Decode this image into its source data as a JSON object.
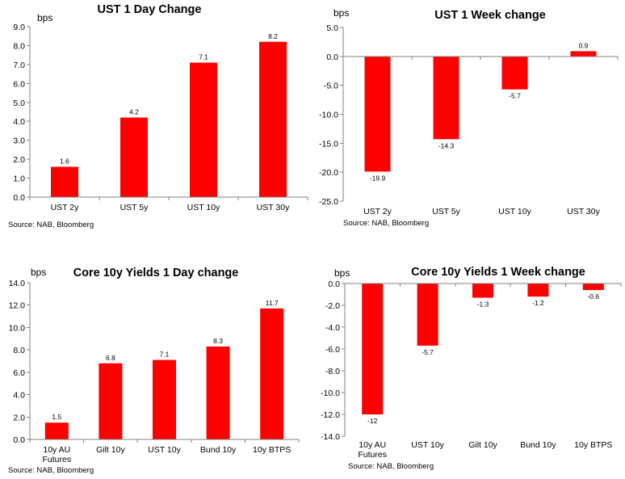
{
  "colors": {
    "bar": "#ff0000",
    "axis": "#808080",
    "text": "#000000",
    "background": "#ffffff"
  },
  "chart_data": [
    {
      "type": "bar",
      "title": "UST 1 Day Change",
      "ylabel": "bps",
      "source": "Source: NAB, Bloomberg",
      "categories": [
        "UST 2y",
        "UST 5y",
        "UST 10y",
        "UST 30y"
      ],
      "values": [
        1.6,
        4.2,
        7.1,
        8.2
      ],
      "value_labels": [
        "1.6",
        "4.2",
        "7.1",
        "8.2"
      ],
      "ylim": [
        0,
        9
      ],
      "yticks": [
        "0.0",
        "1.0",
        "2.0",
        "3.0",
        "4.0",
        "5.0",
        "6.0",
        "7.0",
        "8.0",
        "9.0"
      ],
      "grid": false
    },
    {
      "type": "bar",
      "title": "UST 1 Week change",
      "ylabel": "bps",
      "source": "Source: NAB, Bloomberg",
      "categories": [
        "UST 2y",
        "UST 5y",
        "UST 10y",
        "UST 30y"
      ],
      "values": [
        -19.9,
        -14.3,
        -5.7,
        0.9
      ],
      "value_labels": [
        "-19.9",
        "-14.3",
        "-5.7",
        "0.9"
      ],
      "ylim": [
        -25,
        5
      ],
      "yticks": [
        "-25.0",
        "-20.0",
        "-15.0",
        "-10.0",
        "-5.0",
        "0.0",
        "5.0"
      ],
      "grid": false
    },
    {
      "type": "bar",
      "title": "Core 10y Yields 1 Day change",
      "ylabel": "bps",
      "source": "Source: NAB, Bloomberg",
      "categories": [
        "10y AU Futures",
        "Gilt 10y",
        "UST 10y",
        "Bund 10y",
        "10y BTPS"
      ],
      "category_lines": [
        [
          "10y AU",
          "Futures"
        ],
        [
          "Gilt 10y"
        ],
        [
          "UST 10y"
        ],
        [
          "Bund 10y"
        ],
        [
          "10y BTPS"
        ]
      ],
      "values": [
        1.5,
        6.8,
        7.1,
        8.3,
        11.7
      ],
      "value_labels": [
        "1.5",
        "6.8",
        "7.1",
        "8.3",
        "11.7"
      ],
      "ylim": [
        0,
        14
      ],
      "yticks": [
        "0.0",
        "2.0",
        "4.0",
        "6.0",
        "8.0",
        "10.0",
        "12.0",
        "14.0"
      ],
      "grid": false
    },
    {
      "type": "bar",
      "title": "Core 10y Yields 1 Week change",
      "ylabel": "bps",
      "source": "Source: NAB, Bloomberg",
      "categories": [
        "10y AU Futures",
        "UST 10y",
        "Gilt 10y",
        "Bund 10y",
        "10y BTPS"
      ],
      "category_lines": [
        [
          "10y AU",
          "Futures"
        ],
        [
          "UST 10y"
        ],
        [
          "Gilt 10y"
        ],
        [
          "Bund 10y"
        ],
        [
          "10y BTPS"
        ]
      ],
      "values": [
        -12,
        -5.7,
        -1.3,
        -1.2,
        -0.6
      ],
      "value_labels": [
        "-12",
        "-5.7",
        "-1.3",
        "-1.2",
        "-0.6"
      ],
      "ylim": [
        -14,
        0
      ],
      "yticks": [
        "-14.0",
        "-12.0",
        "-10.0",
        "-8.0",
        "-6.0",
        "-4.0",
        "-2.0",
        "0.0"
      ],
      "grid": false
    }
  ]
}
